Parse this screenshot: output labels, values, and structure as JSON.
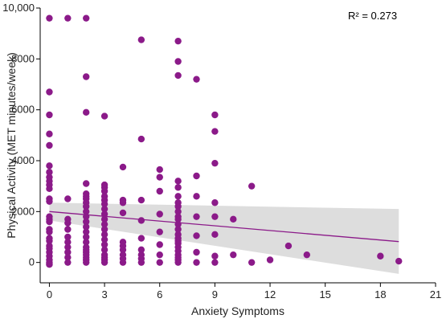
{
  "chart_data": {
    "type": "scatter",
    "title": "",
    "xlabel": "Anxiety Symptoms",
    "ylabel": "Physical Activity (MET minutes/week)",
    "annotation": "R² = 0.273",
    "xlim": [
      -0.5,
      21
    ],
    "ylim": [
      -800,
      10000
    ],
    "x_ticks": [
      0,
      3,
      6,
      9,
      12,
      15,
      18,
      21
    ],
    "y_ticks": [
      0,
      2000,
      4000,
      6000,
      8000,
      10000
    ],
    "x_tick_labels": [
      "0",
      "3",
      "6",
      "9",
      "12",
      "15",
      "18",
      "21"
    ],
    "y_tick_labels": [
      "0",
      "2000",
      "4000",
      "6000",
      "8000",
      "10,000"
    ],
    "grid": false,
    "colors": {
      "points": "#8b1a89",
      "fit_line": "#8b1a89",
      "ci_band": "#d9d9d9",
      "axis": "#000000"
    },
    "fit": {
      "x": [
        0,
        19
      ],
      "y": [
        2000,
        820
      ]
    },
    "ci_band": {
      "x": [
        0,
        19
      ],
      "lower": [
        1650,
        -450
      ],
      "upper": [
        2350,
        2100
      ]
    },
    "points": {
      "x": [
        0,
        0,
        0,
        0,
        0,
        0,
        0,
        0,
        0,
        0,
        0,
        0,
        0,
        0,
        0,
        0,
        0,
        0,
        0,
        0,
        0,
        0,
        0,
        0,
        0,
        0,
        0,
        0,
        1,
        1,
        1,
        1,
        1,
        1,
        1,
        1,
        1,
        1,
        1,
        2,
        2,
        2,
        2,
        2,
        2,
        2,
        2,
        2,
        2,
        2,
        2,
        2,
        2,
        2,
        2,
        2,
        2,
        2,
        2,
        2,
        2,
        2,
        3,
        3,
        3,
        3,
        3,
        3,
        3,
        3,
        3,
        3,
        3,
        3,
        3,
        3,
        3,
        3,
        3,
        3,
        3,
        3,
        4,
        4,
        4,
        4,
        4,
        4,
        4,
        4,
        4,
        4,
        5,
        5,
        5,
        5,
        5,
        5,
        5,
        5,
        5,
        6,
        6,
        6,
        6,
        6,
        6,
        6,
        6,
        7,
        7,
        7,
        7,
        7,
        7,
        7,
        7,
        7,
        7,
        7,
        7,
        7,
        7,
        7,
        7,
        7,
        7,
        7,
        7,
        7,
        7,
        7,
        8,
        8,
        8,
        8,
        8,
        8,
        8,
        9,
        9,
        9,
        9,
        9,
        9,
        9,
        9,
        10,
        10,
        11,
        11,
        12,
        13,
        14,
        18,
        19
      ],
      "y": [
        9600,
        6700,
        5800,
        5050,
        4600,
        3800,
        3550,
        3350,
        3200,
        3050,
        2900,
        2500,
        2400,
        1800,
        1700,
        1600,
        1300,
        1200,
        950,
        850,
        650,
        550,
        400,
        250,
        100,
        0,
        -50,
        -80,
        9600,
        2500,
        1700,
        1550,
        1300,
        1000,
        800,
        600,
        400,
        200,
        0,
        9600,
        7300,
        5900,
        3100,
        2700,
        2600,
        2500,
        2350,
        2200,
        2000,
        1800,
        1600,
        1400,
        1200,
        1000,
        800,
        600,
        500,
        400,
        300,
        200,
        100,
        0,
        5750,
        3050,
        2950,
        2800,
        2600,
        2450,
        2300,
        2100,
        1900,
        1700,
        1500,
        1300,
        1100,
        900,
        700,
        500,
        300,
        200,
        100,
        0,
        3750,
        2450,
        2350,
        1950,
        800,
        650,
        500,
        300,
        150,
        0,
        8750,
        4850,
        2450,
        1650,
        950,
        500,
        300,
        150,
        0,
        3650,
        3350,
        2800,
        1900,
        1200,
        700,
        300,
        0,
        8700,
        7900,
        7350,
        3200,
        2950,
        2600,
        2350,
        2200,
        2000,
        1800,
        1700,
        1500,
        1300,
        1100,
        950,
        850,
        750,
        600,
        450,
        300,
        200,
        100,
        0,
        7200,
        3400,
        2600,
        1800,
        1050,
        400,
        0,
        5800,
        5150,
        3900,
        2350,
        1800,
        1100,
        250,
        0,
        1700,
        300,
        3000,
        0,
        100,
        650,
        300,
        250,
        50
      ]
    }
  }
}
